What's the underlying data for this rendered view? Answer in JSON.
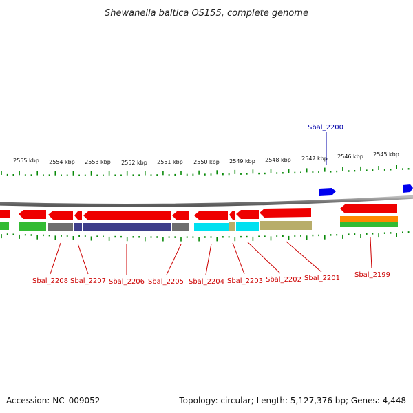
{
  "title": "Shewanella baltica OS155, complete genome",
  "footer": {
    "accession": "Accession: NC_009052",
    "summary": "Topology: circular; Length: 5,127,376 bp; Genes: 4,448"
  },
  "colors": {
    "forward_gene": "#0000ee",
    "reverse_gene": "#ee0000",
    "backbone": "#8a8a8a",
    "tick": "#0a8a0a",
    "forward_label": "#0000aa",
    "reverse_label": "#cc0000"
  },
  "kbp_labels": [
    "2555 kbp",
    "2554 kbp",
    "2553 kbp",
    "2552 kbp",
    "2551 kbp",
    "2550 kbp",
    "2549 kbp",
    "2548 kbp",
    "2547 kbp",
    "2546 kbp",
    "2545 kbp"
  ],
  "labels": {
    "forward": [
      "Sbal_2200"
    ],
    "reverse": [
      "Sbal_2208",
      "Sbal_2207",
      "Sbal_2206",
      "Sbal_2205",
      "Sbal_2204",
      "Sbal_2203",
      "Sbal_2202",
      "Sbal_2201",
      "Sbal_2199"
    ]
  }
}
